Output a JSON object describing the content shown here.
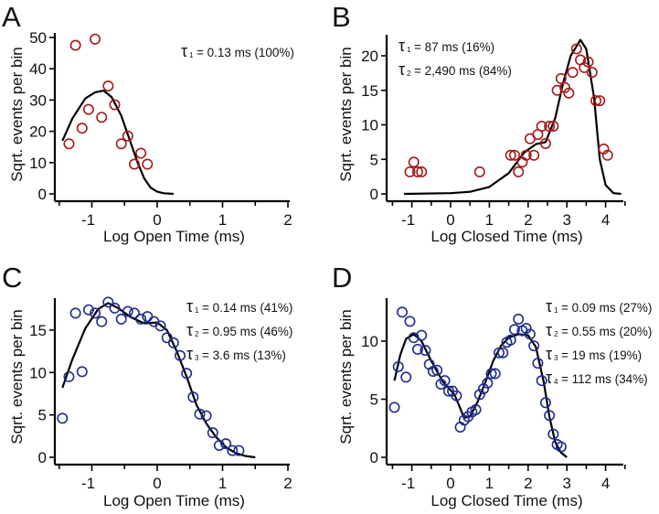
{
  "colors": {
    "red": "#a31a1a",
    "blue": "#1f2d8c",
    "fit": "#000000"
  },
  "chart_data": [
    {
      "panel": "A",
      "type": "scatter",
      "xlabel": "Log Open Time (ms)",
      "ylabel": "Sqrt. events per bin",
      "xlim": [
        -1.6,
        2
      ],
      "ylim": [
        0,
        52
      ],
      "xticks": [
        -1,
        0,
        1,
        2
      ],
      "yticks": [
        0,
        10,
        20,
        30,
        40,
        50
      ],
      "marker_color": "red",
      "taus": [
        {
          "sym": "τ",
          "sub": "1",
          "text": "= 0.13 ms (100%)"
        }
      ],
      "points": [
        [
          -1.35,
          16
        ],
        [
          -1.25,
          47.5
        ],
        [
          -1.15,
          21
        ],
        [
          -1.05,
          27
        ],
        [
          -0.95,
          49.5
        ],
        [
          -0.85,
          24.5
        ],
        [
          -0.75,
          34.5
        ],
        [
          -0.65,
          28.5
        ],
        [
          -0.55,
          16
        ],
        [
          -0.45,
          18.5
        ],
        [
          -0.35,
          9.5
        ],
        [
          -0.25,
          13
        ],
        [
          -0.15,
          9.5
        ]
      ],
      "fit": [
        [
          -1.45,
          17
        ],
        [
          -1.3,
          24
        ],
        [
          -1.1,
          30.5
        ],
        [
          -0.95,
          32.5
        ],
        [
          -0.82,
          33
        ],
        [
          -0.7,
          31
        ],
        [
          -0.55,
          25
        ],
        [
          -0.4,
          16
        ],
        [
          -0.3,
          10
        ],
        [
          -0.2,
          5
        ],
        [
          -0.1,
          2
        ],
        [
          0,
          0.7
        ],
        [
          0.1,
          0.2
        ],
        [
          0.25,
          0
        ]
      ]
    },
    {
      "panel": "B",
      "type": "scatter",
      "xlabel": "Log Closed Time (ms)",
      "ylabel": "Sqrt. events per bin",
      "xlim": [
        -1.6,
        4.5
      ],
      "ylim": [
        0,
        23
      ],
      "xticks": [
        -1,
        0,
        1,
        2,
        3,
        4
      ],
      "yticks": [
        0,
        5,
        10,
        15,
        20
      ],
      "marker_color": "red",
      "taus": [
        {
          "sym": "τ",
          "sub": "1",
          "text": "= 87 ms      (16%)"
        },
        {
          "sym": "τ",
          "sub": "2",
          "text": "= 2,490 ms (84%)"
        }
      ],
      "points": [
        [
          -1.05,
          3.2
        ],
        [
          -0.95,
          4.6
        ],
        [
          -0.85,
          3.2
        ],
        [
          -0.75,
          3.2
        ],
        [
          0.75,
          3.2
        ],
        [
          1.55,
          5.6
        ],
        [
          1.65,
          5.6
        ],
        [
          1.75,
          3.2
        ],
        [
          1.85,
          4.6
        ],
        [
          1.95,
          5.6
        ],
        [
          2.05,
          8
        ],
        [
          2.15,
          5.6
        ],
        [
          2.25,
          8.6
        ],
        [
          2.35,
          9.8
        ],
        [
          2.45,
          7.3
        ],
        [
          2.55,
          9.8
        ],
        [
          2.65,
          9.8
        ],
        [
          2.75,
          15
        ],
        [
          2.85,
          16.7
        ],
        [
          2.95,
          15.4
        ],
        [
          3.05,
          14.6
        ],
        [
          3.15,
          17.6
        ],
        [
          3.25,
          21
        ],
        [
          3.35,
          19.4
        ],
        [
          3.45,
          18.3
        ],
        [
          3.55,
          19.1
        ],
        [
          3.65,
          17.6
        ],
        [
          3.75,
          13.5
        ],
        [
          3.85,
          13.5
        ],
        [
          3.95,
          6.5
        ],
        [
          4.05,
          5.6
        ]
      ],
      "fit": [
        [
          -1.2,
          0
        ],
        [
          0,
          0.1
        ],
        [
          0.5,
          0.3
        ],
        [
          1,
          1
        ],
        [
          1.5,
          3
        ],
        [
          1.9,
          6
        ],
        [
          2.2,
          7.2
        ],
        [
          2.45,
          7.5
        ],
        [
          2.7,
          11
        ],
        [
          2.9,
          16
        ],
        [
          3.1,
          20
        ],
        [
          3.35,
          22.3
        ],
        [
          3.5,
          21
        ],
        [
          3.7,
          14
        ],
        [
          3.85,
          5
        ],
        [
          4,
          1.3
        ],
        [
          4.2,
          0.1
        ],
        [
          4.4,
          0
        ]
      ]
    },
    {
      "panel": "C",
      "type": "scatter",
      "xlabel": "Log Open Time (ms)",
      "ylabel": "Sqrt. events per bin",
      "xlim": [
        -1.6,
        2
      ],
      "ylim": [
        0,
        18.7
      ],
      "xticks": [
        -1,
        0,
        1,
        2
      ],
      "yticks": [
        0,
        5,
        10,
        15
      ],
      "marker_color": "blue",
      "taus": [
        {
          "sym": "τ",
          "sub": "1",
          "text": "= 0.14 ms (41%)"
        },
        {
          "sym": "τ",
          "sub": "2",
          "text": "= 0.95 ms (46%)"
        },
        {
          "sym": "τ",
          "sub": "3",
          "text": "= 3.6 ms   (13%)"
        }
      ],
      "points": [
        [
          -1.45,
          4.6
        ],
        [
          -1.35,
          9.5
        ],
        [
          -1.25,
          17
        ],
        [
          -1.15,
          10.1
        ],
        [
          -1.05,
          17.4
        ],
        [
          -0.95,
          17
        ],
        [
          -0.85,
          16
        ],
        [
          -0.75,
          18.3
        ],
        [
          -0.65,
          17.6
        ],
        [
          -0.55,
          16.3
        ],
        [
          -0.45,
          17.2
        ],
        [
          -0.35,
          17
        ],
        [
          -0.25,
          16.3
        ],
        [
          -0.15,
          16.6
        ],
        [
          -0.05,
          16
        ],
        [
          0.05,
          15.5
        ],
        [
          0.15,
          14.1
        ],
        [
          0.25,
          13.5
        ],
        [
          0.35,
          12
        ],
        [
          0.45,
          9.9
        ],
        [
          0.55,
          7.1
        ],
        [
          0.65,
          5.1
        ],
        [
          0.75,
          4.9
        ],
        [
          0.85,
          2.9
        ],
        [
          0.95,
          1.4
        ],
        [
          1.05,
          1.6
        ],
        [
          1.15,
          0.8
        ],
        [
          1.25,
          0.8
        ]
      ],
      "fit": [
        [
          -1.45,
          8.2
        ],
        [
          -1.3,
          11.5
        ],
        [
          -1.1,
          15.2
        ],
        [
          -0.9,
          17.5
        ],
        [
          -0.75,
          18.2
        ],
        [
          -0.6,
          17.6
        ],
        [
          -0.4,
          16.5
        ],
        [
          -0.2,
          15.8
        ],
        [
          0,
          15.9
        ],
        [
          0.15,
          15
        ],
        [
          0.3,
          12.5
        ],
        [
          0.45,
          9.5
        ],
        [
          0.6,
          6.2
        ],
        [
          0.75,
          4
        ],
        [
          0.9,
          2.4
        ],
        [
          1.05,
          1.2
        ],
        [
          1.2,
          0.5
        ],
        [
          1.35,
          0.15
        ],
        [
          1.5,
          0
        ]
      ]
    },
    {
      "panel": "D",
      "type": "scatter",
      "xlabel": "Log Closed Time (ms)",
      "ylabel": "Sqrt. events per bin",
      "xlim": [
        -1.6,
        4.5
      ],
      "ylim": [
        0,
        13.6
      ],
      "xticks": [
        -1,
        0,
        1,
        2,
        3,
        4
      ],
      "yticks": [
        0,
        5,
        10
      ],
      "marker_color": "blue",
      "taus": [
        {
          "sym": "τ",
          "sub": "1",
          "text": "= 0.09 ms (27%)"
        },
        {
          "sym": "τ",
          "sub": "2",
          "text": "= 0.55 ms (20%)"
        },
        {
          "sym": "τ",
          "sub": "3",
          "text": "= 19 ms   (19%)"
        },
        {
          "sym": "τ",
          "sub": "4",
          "text": "= 112 ms (34%)"
        }
      ],
      "points": [
        [
          -1.45,
          4.3
        ],
        [
          -1.35,
          7.8
        ],
        [
          -1.25,
          12.5
        ],
        [
          -1.15,
          6.9
        ],
        [
          -1.05,
          11.7
        ],
        [
          -0.95,
          10.3
        ],
        [
          -0.85,
          9.3
        ],
        [
          -0.75,
          10.5
        ],
        [
          -0.65,
          9.2
        ],
        [
          -0.55,
          8
        ],
        [
          -0.45,
          7.4
        ],
        [
          -0.35,
          7.5
        ],
        [
          -0.25,
          6.3
        ],
        [
          -0.15,
          6.6
        ],
        [
          -0.05,
          5.7
        ],
        [
          0.05,
          5.7
        ],
        [
          0.15,
          5.3
        ],
        [
          0.25,
          2.6
        ],
        [
          0.35,
          3.2
        ],
        [
          0.45,
          3.5
        ],
        [
          0.55,
          3.9
        ],
        [
          0.65,
          4.1
        ],
        [
          0.75,
          5.4
        ],
        [
          0.85,
          5.9
        ],
        [
          0.95,
          6.4
        ],
        [
          1.05,
          7.2
        ],
        [
          1.15,
          7.2
        ],
        [
          1.25,
          9
        ],
        [
          1.35,
          9
        ],
        [
          1.45,
          9.9
        ],
        [
          1.55,
          10.1
        ],
        [
          1.65,
          11
        ],
        [
          1.75,
          11.9
        ],
        [
          1.85,
          10.9
        ],
        [
          1.95,
          11.1
        ],
        [
          2.05,
          10.6
        ],
        [
          2.15,
          9.6
        ],
        [
          2.25,
          8.1
        ],
        [
          2.35,
          6.6
        ],
        [
          2.45,
          4.7
        ],
        [
          2.55,
          3.6
        ],
        [
          2.65,
          2
        ],
        [
          2.75,
          1.1
        ],
        [
          2.85,
          0.9
        ]
      ],
      "fit": [
        [
          -1.45,
          6.6
        ],
        [
          -1.3,
          8.8
        ],
        [
          -1.15,
          10.2
        ],
        [
          -0.95,
          10.6
        ],
        [
          -0.75,
          10
        ],
        [
          -0.5,
          8.3
        ],
        [
          -0.2,
          6.5
        ],
        [
          0.1,
          5.4
        ],
        [
          0.2,
          4.6
        ],
        [
          0.35,
          3.4
        ],
        [
          0.5,
          3.5
        ],
        [
          0.7,
          4.8
        ],
        [
          0.9,
          6.5
        ],
        [
          1.1,
          8.3
        ],
        [
          1.3,
          9.6
        ],
        [
          1.5,
          10.3
        ],
        [
          1.75,
          10.6
        ],
        [
          2,
          10.5
        ],
        [
          2.2,
          9.5
        ],
        [
          2.4,
          6.5
        ],
        [
          2.55,
          3.5
        ],
        [
          2.7,
          1.3
        ],
        [
          2.85,
          0.4
        ],
        [
          3,
          0
        ]
      ]
    }
  ]
}
